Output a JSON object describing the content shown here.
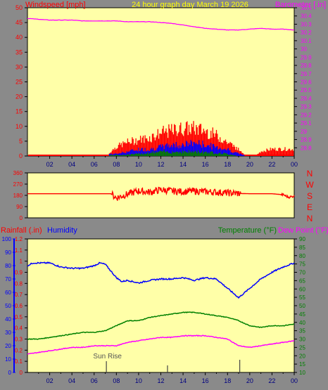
{
  "chart_data": [
    {
      "type": "line",
      "title": "24 hour graph day   March 19 2026",
      "left_axis_label": "Windspeed [mph]",
      "right_axis_label": "Barometer [.in]",
      "x_ticks": [
        "02",
        "04",
        "06",
        "08",
        "10",
        "12",
        "14",
        "16",
        "18",
        "20",
        "22",
        "00"
      ],
      "x_range": [
        0,
        24
      ],
      "left_ylim": [
        0,
        50
      ],
      "left_ticks": [
        0,
        5,
        10,
        15,
        20,
        25,
        30,
        35,
        40,
        45,
        50
      ],
      "right_ylim": [
        28.7,
        30.5
      ],
      "right_ticks": [
        "28.8",
        "28.9",
        "29",
        "29.1",
        "29.2",
        "29.3",
        "29.4",
        "29.5",
        "29.6",
        "29.7",
        "29.8",
        "29.9",
        "30",
        "30.1",
        "30.2",
        "30.3",
        "30.4",
        "30.5"
      ],
      "colors": {
        "gust": "#ff0000",
        "avg": "#0000ff",
        "low": "#008000",
        "barometer": "#ff00ff",
        "labels_left": "#ff0000",
        "title": "#ffff00"
      },
      "series": [
        {
          "name": "Barometer",
          "axis": "right",
          "points": [
            [
              0,
              30.37
            ],
            [
              1,
              30.36
            ],
            [
              2,
              30.35
            ],
            [
              3,
              30.35
            ],
            [
              4,
              30.35
            ],
            [
              5,
              30.34
            ],
            [
              6,
              30.34
            ],
            [
              7,
              30.34
            ],
            [
              8,
              30.34
            ],
            [
              9,
              30.33
            ],
            [
              10,
              30.33
            ],
            [
              11,
              30.33
            ],
            [
              12,
              30.32
            ],
            [
              13,
              30.31
            ],
            [
              14,
              30.29
            ],
            [
              15,
              30.27
            ],
            [
              16,
              30.25
            ],
            [
              17,
              30.24
            ],
            [
              18,
              30.23
            ],
            [
              19,
              30.23
            ],
            [
              20,
              30.24
            ],
            [
              21,
              30.25
            ],
            [
              22,
              30.24
            ],
            [
              23,
              30.24
            ],
            [
              24,
              30.23
            ]
          ]
        },
        {
          "name": "Wind gust envelope",
          "axis": "left",
          "points": [
            [
              0,
              0
            ],
            [
              7.2,
              0
            ],
            [
              7.5,
              2
            ],
            [
              8,
              4
            ],
            [
              9,
              6
            ],
            [
              10,
              7
            ],
            [
              11,
              8
            ],
            [
              12,
              10
            ],
            [
              13,
              11
            ],
            [
              14,
              12
            ],
            [
              15,
              12
            ],
            [
              16,
              11
            ],
            [
              17,
              9
            ],
            [
              18,
              6
            ],
            [
              19,
              3
            ],
            [
              19.6,
              0
            ],
            [
              20.5,
              0
            ],
            [
              21,
              2
            ],
            [
              22,
              3
            ],
            [
              23,
              3
            ],
            [
              24,
              3
            ]
          ]
        },
        {
          "name": "Wind average envelope",
          "axis": "left",
          "points": [
            [
              0,
              0
            ],
            [
              8,
              1
            ],
            [
              9,
              2
            ],
            [
              10,
              3
            ],
            [
              11,
              3
            ],
            [
              12,
              4
            ],
            [
              13,
              5
            ],
            [
              14,
              5
            ],
            [
              15,
              6
            ],
            [
              16,
              5
            ],
            [
              17,
              4
            ],
            [
              18,
              3
            ],
            [
              19,
              1
            ],
            [
              20,
              0
            ],
            [
              24,
              0
            ]
          ]
        },
        {
          "name": "Wind low envelope",
          "axis": "left",
          "points": [
            [
              0,
              0
            ],
            [
              8.5,
              0.5
            ],
            [
              10,
              1
            ],
            [
              12,
              2
            ],
            [
              14,
              2
            ],
            [
              16,
              2
            ],
            [
              18,
              1
            ],
            [
              19,
              0
            ],
            [
              24,
              0
            ]
          ]
        }
      ]
    },
    {
      "type": "line",
      "title": "",
      "x_range": [
        0,
        24
      ],
      "ylim": [
        0,
        360
      ],
      "y_ticks": [
        0,
        90,
        180,
        270,
        360
      ],
      "direction_labels": [
        "N",
        "W",
        "S",
        "E",
        "N"
      ],
      "colors": {
        "direction": "#ff0000"
      },
      "series": [
        {
          "name": "Wind direction",
          "points": [
            [
              0,
              193
            ],
            [
              6,
              193
            ],
            [
              7.5,
              193
            ],
            [
              8,
              160
            ],
            [
              9,
              190
            ],
            [
              10,
              215
            ],
            [
              11,
              205
            ],
            [
              12,
              225
            ],
            [
              13,
              215
            ],
            [
              14,
              210
            ],
            [
              15,
              215
            ],
            [
              16,
              210
            ],
            [
              17,
              205
            ],
            [
              18,
              200
            ],
            [
              19,
              195
            ],
            [
              20,
              193
            ],
            [
              22,
              193
            ],
            [
              23,
              185
            ],
            [
              23.5,
              165
            ],
            [
              24,
              175
            ]
          ]
        }
      ]
    },
    {
      "type": "line",
      "title": "",
      "left_labels": {
        "rain": "Rainfall (.in)",
        "humidity": "Humidity"
      },
      "right_labels": {
        "temperature": "Temperature (°F)",
        "dewpoint": "Dew Point (°F)"
      },
      "x_ticks": [
        "02",
        "04",
        "06",
        "08",
        "10",
        "12",
        "14",
        "16",
        "18",
        "20",
        "22",
        "00"
      ],
      "x_range": [
        0,
        24
      ],
      "humidity_ticks": [
        0,
        10,
        20,
        30,
        40,
        50,
        60,
        70,
        80,
        90,
        100
      ],
      "humidity_ylim": [
        0,
        100
      ],
      "rain_ticks": [
        "0",
        "0.1",
        "0.2",
        "0.3",
        "0.4",
        "0.5",
        "0.6",
        "0.7",
        "0.8",
        "0.9",
        "1",
        "1.1",
        "1.2"
      ],
      "rain_ylim": [
        0,
        1.2
      ],
      "temp_ticks": [
        10,
        15,
        20,
        25,
        30,
        35,
        40,
        45,
        50,
        55,
        60,
        65,
        70,
        75,
        80,
        85,
        90
      ],
      "temp_ylim": [
        10,
        90
      ],
      "sun_rise_label": "Sun Rise",
      "colors": {
        "humidity": "#0000ff",
        "temperature": "#008000",
        "dewpoint": "#ff00ff",
        "rain_label": "#ff0000"
      },
      "series": [
        {
          "name": "Humidity",
          "axis": "humidity",
          "points": [
            [
              0,
              80
            ],
            [
              0.5,
              82
            ],
            [
              1,
              82
            ],
            [
              2,
              82
            ],
            [
              3,
              79
            ],
            [
              4,
              78
            ],
            [
              5,
              78
            ],
            [
              6,
              80
            ],
            [
              6.5,
              82
            ],
            [
              7,
              81
            ],
            [
              8,
              71
            ],
            [
              8.5,
              68
            ],
            [
              9,
              69
            ],
            [
              10,
              67
            ],
            [
              11,
              69
            ],
            [
              12,
              70
            ],
            [
              13,
              70
            ],
            [
              14,
              71
            ],
            [
              15,
              69
            ],
            [
              16,
              71
            ],
            [
              17,
              70
            ],
            [
              18,
              63
            ],
            [
              19,
              56
            ],
            [
              20,
              63
            ],
            [
              21,
              70
            ],
            [
              22,
              75
            ],
            [
              23,
              79
            ],
            [
              24,
              82
            ]
          ]
        },
        {
          "name": "Temperature",
          "axis": "temp",
          "points": [
            [
              0,
              30
            ],
            [
              1,
              30
            ],
            [
              2,
              31
            ],
            [
              3,
              32
            ],
            [
              4,
              33
            ],
            [
              5,
              34
            ],
            [
              6,
              34
            ],
            [
              7,
              35
            ],
            [
              8,
              38
            ],
            [
              9,
              41
            ],
            [
              10,
              41
            ],
            [
              11,
              43
            ],
            [
              12,
              44
            ],
            [
              13,
              45
            ],
            [
              14,
              46
            ],
            [
              15,
              46
            ],
            [
              16,
              45
            ],
            [
              17,
              44
            ],
            [
              18,
              43
            ],
            [
              19,
              41
            ],
            [
              20,
              38
            ],
            [
              21,
              37
            ],
            [
              22,
              38
            ],
            [
              23,
              38
            ],
            [
              24,
              39
            ]
          ]
        },
        {
          "name": "Dew Point",
          "axis": "temp",
          "points": [
            [
              0,
              21
            ],
            [
              1,
              22
            ],
            [
              2,
              23
            ],
            [
              3,
              24
            ],
            [
              4,
              25
            ],
            [
              5,
              25
            ],
            [
              6,
              26
            ],
            [
              7,
              26
            ],
            [
              8,
              26
            ],
            [
              9,
              28
            ],
            [
              10,
              29
            ],
            [
              11,
              30
            ],
            [
              12,
              31
            ],
            [
              13,
              31
            ],
            [
              14,
              32
            ],
            [
              15,
              32
            ],
            [
              16,
              32
            ],
            [
              17,
              31
            ],
            [
              18,
              30
            ],
            [
              19,
              26
            ],
            [
              20,
              25
            ],
            [
              21,
              26
            ],
            [
              22,
              27
            ],
            [
              23,
              28
            ],
            [
              24,
              29
            ]
          ]
        }
      ]
    }
  ]
}
